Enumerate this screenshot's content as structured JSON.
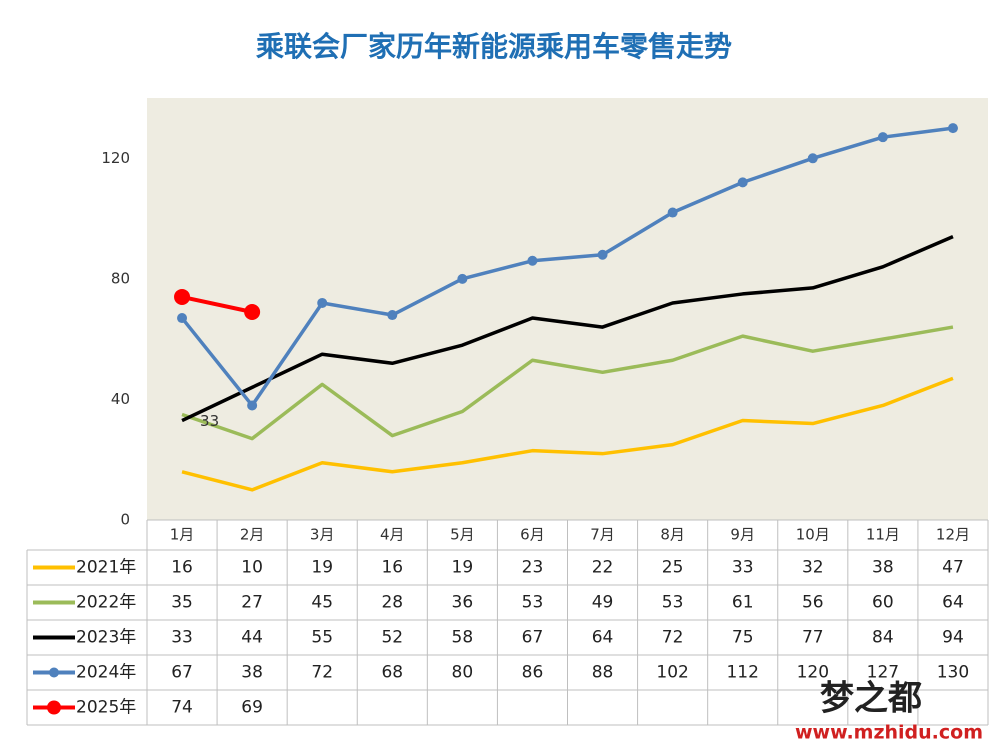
{
  "chart_data": {
    "type": "line",
    "title": "乘联会厂家历年新能源乘用车零售走势",
    "categories": [
      "1月",
      "2月",
      "3月",
      "4月",
      "5月",
      "6月",
      "7月",
      "8月",
      "9月",
      "10月",
      "11月",
      "12月"
    ],
    "series": [
      {
        "name": "2021年",
        "color": "#ffc000",
        "marker": false,
        "values": [
          16,
          10,
          19,
          16,
          19,
          23,
          22,
          25,
          33,
          32,
          38,
          47
        ]
      },
      {
        "name": "2022年",
        "color": "#9bbb59",
        "marker": false,
        "values": [
          35,
          27,
          45,
          28,
          36,
          53,
          49,
          53,
          61,
          56,
          60,
          64
        ]
      },
      {
        "name": "2023年",
        "color": "#000000",
        "marker": false,
        "values": [
          33,
          44,
          55,
          52,
          58,
          67,
          64,
          72,
          75,
          77,
          84,
          94
        ]
      },
      {
        "name": "2024年",
        "color": "#4f81bd",
        "marker": true,
        "values": [
          67,
          38,
          72,
          68,
          80,
          86,
          88,
          102,
          112,
          120,
          127,
          130
        ]
      },
      {
        "name": "2025年",
        "color": "#ff0000",
        "marker": true,
        "values": [
          74,
          69,
          null,
          null,
          null,
          null,
          null,
          null,
          null,
          null,
          null,
          null
        ]
      }
    ],
    "ylim": [
      0,
      140
    ],
    "yticks": [
      0,
      40,
      80,
      120
    ],
    "grid": false,
    "watermark": [
      "梦之都",
      "www.mzhidu.com"
    ]
  }
}
